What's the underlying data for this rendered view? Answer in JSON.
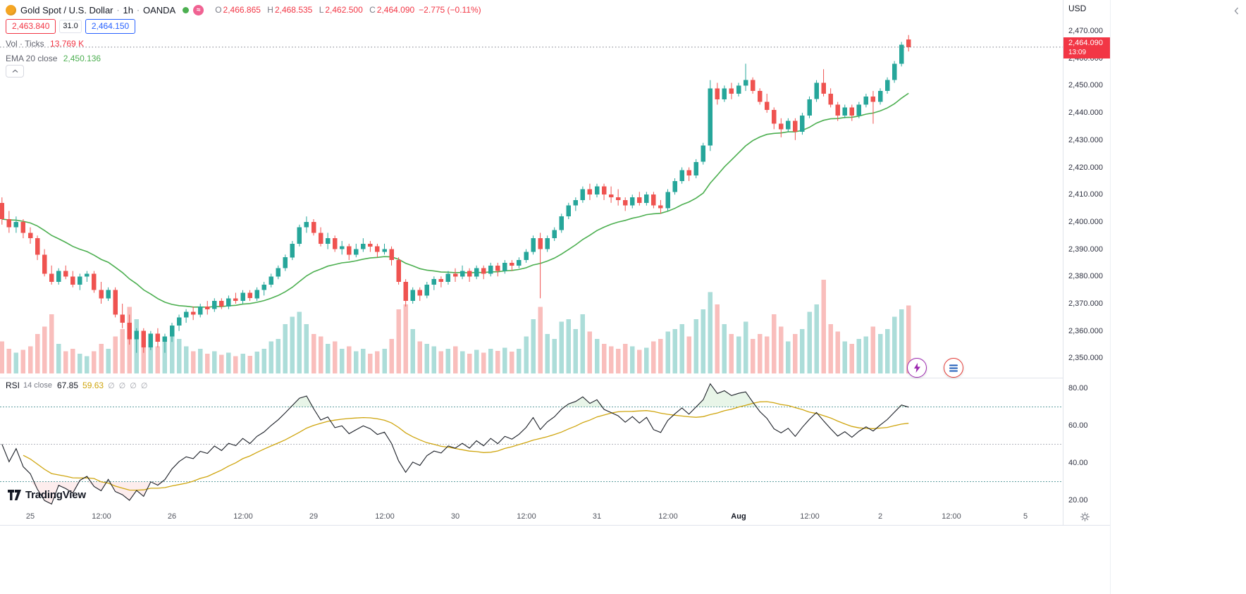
{
  "header": {
    "symbol_title": "Gold Spot / U.S. Dollar",
    "separator": "·",
    "interval": "1h",
    "exchange": "OANDA",
    "delayed_icon": "≈",
    "ohlc": {
      "o_label": "O",
      "o": "2,466.865",
      "h_label": "H",
      "h": "2,468.535",
      "l_label": "L",
      "l": "2,462.500",
      "c_label": "C",
      "c": "2,464.090",
      "change": "−2.775 (−0.11%)"
    },
    "bid": "2,463.840",
    "spread": "31.0",
    "ask": "2,464.150",
    "volume_label": "Vol · Ticks",
    "volume_value": "13.769 K",
    "ema_label": "EMA 20 close",
    "ema_value": "2,450.136"
  },
  "rsi_legend": {
    "title": "RSI",
    "params": "14 close",
    "value": "67.85",
    "ma_value": "59.63",
    "empty_plots": [
      "∅",
      "∅",
      "∅",
      "∅"
    ]
  },
  "price_axis": {
    "currency": "USD",
    "last_price": "2,464.090",
    "countdown": "13:09",
    "labels": [
      {
        "text": "2,470.000",
        "price": 2470
      },
      {
        "text": "2,460.000",
        "price": 2460
      },
      {
        "text": "2,450.000",
        "price": 2450
      },
      {
        "text": "2,440.000",
        "price": 2440
      },
      {
        "text": "2,430.000",
        "price": 2430
      },
      {
        "text": "2,420.000",
        "price": 2420
      },
      {
        "text": "2,410.000",
        "price": 2410
      },
      {
        "text": "2,400.000",
        "price": 2400
      },
      {
        "text": "2,390.000",
        "price": 2390
      },
      {
        "text": "2,380.000",
        "price": 2380
      },
      {
        "text": "2,370.000",
        "price": 2370
      },
      {
        "text": "2,360.000",
        "price": 2360
      },
      {
        "text": "2,350.000",
        "price": 2350
      }
    ]
  },
  "rsi_axis_labels": [
    {
      "text": "80.00",
      "value": 80
    },
    {
      "text": "60.00",
      "value": 60
    },
    {
      "text": "40.00",
      "value": 40
    },
    {
      "text": "20.00",
      "value": 20
    }
  ],
  "time_axis": [
    {
      "label": "25",
      "idx": 4,
      "bold": false
    },
    {
      "label": "12:00",
      "idx": 14,
      "bold": false
    },
    {
      "label": "26",
      "idx": 24,
      "bold": false
    },
    {
      "label": "12:00",
      "idx": 34,
      "bold": false
    },
    {
      "label": "29",
      "idx": 44,
      "bold": false
    },
    {
      "label": "12:00",
      "idx": 54,
      "bold": false
    },
    {
      "label": "30",
      "idx": 64,
      "bold": false
    },
    {
      "label": "12:00",
      "idx": 74,
      "bold": false
    },
    {
      "label": "31",
      "idx": 84,
      "bold": false
    },
    {
      "label": "12:00",
      "idx": 94,
      "bold": false
    },
    {
      "label": "Aug",
      "idx": 104,
      "bold": true
    },
    {
      "label": "12:00",
      "idx": 114,
      "bold": false
    },
    {
      "label": "2",
      "idx": 124,
      "bold": false
    },
    {
      "label": "12:00",
      "idx": 134,
      "bold": false
    },
    {
      "label": "5",
      "idx": 144.5,
      "bold": false
    }
  ],
  "watermark": "TradingView",
  "colors": {
    "up": "#26a69a",
    "down": "#ef5350",
    "vol_up": "rgba(38,166,154,0.38)",
    "vol_down": "rgba(239,83,80,0.38)",
    "ema": "#4caf50",
    "price_line": "#787b86",
    "rsi_line": "#1b1f27",
    "rsi_ma": "#cfa50e",
    "rsi_band": "#5f9ea0",
    "rsi_mid": "#b2b5be",
    "rsi_fill_high": "rgba(76,175,80,0.13)",
    "rsi_fill_low": "rgba(239,83,80,0.10)",
    "badge_bg": "#f23645",
    "bid": "#f23645",
    "ask": "#2962ff",
    "axis_border": "#e0e3eb",
    "status_green": "#4caf50",
    "delayed_pink": "#f06292",
    "logo_gold": "#f5a623"
  },
  "chart_data": {
    "type": "candlestick",
    "title": "Gold Spot / U.S. Dollar, 1h, OANDA",
    "ohlcv_format": [
      "open",
      "high",
      "low",
      "close",
      "volume_K"
    ],
    "visible_price_range": [
      2343,
      2481
    ],
    "indicators": {
      "ema_period": 20,
      "rsi_period": 14,
      "rsi_ma_period": 14,
      "rsi_bands": [
        70,
        50,
        30
      ]
    },
    "volume_unit": "K",
    "candles": [
      [
        2407,
        2409,
        2399,
        2401,
        6.5
      ],
      [
        2401,
        2404,
        2396,
        2398,
        5
      ],
      [
        2398,
        2402,
        2396,
        2400,
        4.2
      ],
      [
        2400,
        2401,
        2394,
        2396,
        4.8
      ],
      [
        2396,
        2398,
        2392,
        2394,
        5.5
      ],
      [
        2394,
        2395,
        2386,
        2388,
        8
      ],
      [
        2388,
        2390,
        2380,
        2381,
        9.5
      ],
      [
        2381,
        2384,
        2377,
        2378,
        12
      ],
      [
        2378,
        2383,
        2377,
        2382,
        6
      ],
      [
        2382,
        2384,
        2379,
        2380,
        4.5
      ],
      [
        2380,
        2382,
        2376,
        2377,
        5
      ],
      [
        2377,
        2381,
        2375,
        2380,
        4
      ],
      [
        2380,
        2382,
        2378,
        2381,
        3.5
      ],
      [
        2381,
        2382,
        2374,
        2375,
        4.5
      ],
      [
        2375,
        2378,
        2370,
        2372,
        6
      ],
      [
        2372,
        2376,
        2371,
        2375,
        5
      ],
      [
        2375,
        2376,
        2365,
        2366,
        7.5
      ],
      [
        2366,
        2370,
        2361,
        2363,
        9
      ],
      [
        2363,
        2366,
        2355,
        2357,
        13.5
      ],
      [
        2357,
        2361,
        2352,
        2360,
        11
      ],
      [
        2360,
        2361,
        2352,
        2354,
        8.5
      ],
      [
        2354,
        2360,
        2353,
        2359,
        6
      ],
      [
        2359,
        2361,
        2354,
        2356,
        5.5
      ],
      [
        2356,
        2359,
        2352,
        2358,
        7
      ],
      [
        2358,
        2363,
        2356,
        2362,
        9
      ],
      [
        2362,
        2366,
        2360,
        2365,
        7
      ],
      [
        2365,
        2368,
        2363,
        2367,
        5.5
      ],
      [
        2367,
        2369,
        2364,
        2366,
        4.5
      ],
      [
        2366,
        2370,
        2365,
        2369,
        5
      ],
      [
        2369,
        2371,
        2366,
        2368,
        4
      ],
      [
        2368,
        2372,
        2367,
        2371,
        4.5
      ],
      [
        2371,
        2372,
        2368,
        2369,
        3.8
      ],
      [
        2369,
        2373,
        2368,
        2372,
        4.2
      ],
      [
        2372,
        2374,
        2370,
        2371,
        3.5
      ],
      [
        2371,
        2375,
        2370,
        2374,
        4
      ],
      [
        2374,
        2375,
        2371,
        2372,
        3.6
      ],
      [
        2372,
        2376,
        2371,
        2375,
        4.4
      ],
      [
        2375,
        2378,
        2373,
        2377,
        5
      ],
      [
        2377,
        2381,
        2376,
        2380,
        6.5
      ],
      [
        2380,
        2384,
        2379,
        2383,
        7
      ],
      [
        2383,
        2388,
        2382,
        2387,
        10
      ],
      [
        2387,
        2393,
        2386,
        2392,
        11.5
      ],
      [
        2392,
        2399,
        2391,
        2398,
        12.5
      ],
      [
        2398,
        2402,
        2396,
        2400,
        10
      ],
      [
        2400,
        2401,
        2395,
        2396,
        8
      ],
      [
        2396,
        2398,
        2391,
        2392,
        7.5
      ],
      [
        2392,
        2396,
        2390,
        2394,
        6
      ],
      [
        2394,
        2395,
        2389,
        2390,
        6.5
      ],
      [
        2390,
        2393,
        2388,
        2391,
        5
      ],
      [
        2391,
        2392,
        2386,
        2388,
        5.5
      ],
      [
        2388,
        2392,
        2387,
        2390,
        4.5
      ],
      [
        2390,
        2394,
        2389,
        2392,
        5
      ],
      [
        2392,
        2393,
        2389,
        2391,
        4
      ],
      [
        2391,
        2392,
        2387,
        2389,
        4.5
      ],
      [
        2389,
        2392,
        2388,
        2390,
        5
      ],
      [
        2390,
        2391,
        2384,
        2386,
        7
      ],
      [
        2386,
        2387,
        2377,
        2378,
        13
      ],
      [
        2378,
        2379,
        2369,
        2371,
        14
      ],
      [
        2371,
        2376,
        2370,
        2375,
        9
      ],
      [
        2375,
        2376,
        2371,
        2373,
        6.5
      ],
      [
        2373,
        2378,
        2372,
        2377,
        6
      ],
      [
        2377,
        2380,
        2375,
        2379,
        5.5
      ],
      [
        2379,
        2380,
        2376,
        2378,
        4.5
      ],
      [
        2378,
        2382,
        2377,
        2381,
        5
      ],
      [
        2381,
        2383,
        2378,
        2380,
        5.5
      ],
      [
        2380,
        2384,
        2379,
        2382,
        4.5
      ],
      [
        2382,
        2383,
        2378,
        2380,
        4
      ],
      [
        2380,
        2384,
        2379,
        2383,
        4.8
      ],
      [
        2383,
        2384,
        2379,
        2381,
        4.2
      ],
      [
        2381,
        2385,
        2380,
        2384,
        5
      ],
      [
        2384,
        2385,
        2380,
        2382,
        4.6
      ],
      [
        2382,
        2386,
        2381,
        2385,
        5.2
      ],
      [
        2385,
        2386,
        2382,
        2384,
        4.4
      ],
      [
        2384,
        2387,
        2383,
        2386,
        5
      ],
      [
        2386,
        2390,
        2385,
        2389,
        7.5
      ],
      [
        2389,
        2395,
        2388,
        2394,
        11
      ],
      [
        2394,
        2396,
        2372,
        2390,
        13.5
      ],
      [
        2390,
        2395,
        2389,
        2394,
        8
      ],
      [
        2394,
        2398,
        2393,
        2397,
        7
      ],
      [
        2397,
        2403,
        2396,
        2402,
        10.5
      ],
      [
        2402,
        2407,
        2401,
        2406,
        11
      ],
      [
        2406,
        2409,
        2404,
        2408,
        9
      ],
      [
        2408,
        2413,
        2407,
        2412,
        12
      ],
      [
        2412,
        2414,
        2408,
        2410,
        8.5
      ],
      [
        2410,
        2414,
        2409,
        2413,
        7
      ],
      [
        2413,
        2414,
        2408,
        2410,
        6
      ],
      [
        2410,
        2413,
        2407,
        2409,
        5.5
      ],
      [
        2409,
        2412,
        2406,
        2408,
        5
      ],
      [
        2408,
        2409,
        2404,
        2406,
        6
      ],
      [
        2406,
        2410,
        2405,
        2409,
        5.5
      ],
      [
        2409,
        2411,
        2406,
        2407,
        4.8
      ],
      [
        2407,
        2411,
        2406,
        2410,
        5.2
      ],
      [
        2410,
        2411,
        2405,
        2406,
        6.5
      ],
      [
        2406,
        2408,
        2403,
        2405,
        7
      ],
      [
        2405,
        2412,
        2404,
        2411,
        8.5
      ],
      [
        2411,
        2416,
        2410,
        2415,
        9
      ],
      [
        2415,
        2420,
        2414,
        2419,
        10
      ],
      [
        2419,
        2420,
        2415,
        2417,
        7.5
      ],
      [
        2417,
        2423,
        2416,
        2422,
        11
      ],
      [
        2422,
        2429,
        2421,
        2428,
        13
      ],
      [
        2428,
        2452,
        2426,
        2449,
        16.5
      ],
      [
        2449,
        2451,
        2443,
        2445,
        14
      ],
      [
        2445,
        2450,
        2444,
        2449,
        10
      ],
      [
        2449,
        2451,
        2445,
        2447,
        8
      ],
      [
        2447,
        2451,
        2446,
        2450,
        7.5
      ],
      [
        2450,
        2458,
        2448,
        2452,
        10.5
      ],
      [
        2452,
        2453,
        2447,
        2448,
        7
      ],
      [
        2448,
        2449,
        2443,
        2444,
        8
      ],
      [
        2444,
        2447,
        2440,
        2441,
        7.5
      ],
      [
        2441,
        2442,
        2434,
        2436,
        12
      ],
      [
        2436,
        2438,
        2431,
        2434,
        9.5
      ],
      [
        2434,
        2438,
        2433,
        2437,
        6.5
      ],
      [
        2437,
        2438,
        2430,
        2433,
        8
      ],
      [
        2433,
        2440,
        2432,
        2439,
        9
      ],
      [
        2439,
        2446,
        2438,
        2445,
        12.5
      ],
      [
        2445,
        2452,
        2444,
        2451,
        14
      ],
      [
        2451,
        2456,
        2446,
        2447,
        19
      ],
      [
        2447,
        2449,
        2442,
        2443,
        10
      ],
      [
        2443,
        2444,
        2437,
        2439,
        8.5
      ],
      [
        2439,
        2443,
        2438,
        2442,
        6.5
      ],
      [
        2442,
        2443,
        2437,
        2439,
        6
      ],
      [
        2439,
        2444,
        2438,
        2443,
        7
      ],
      [
        2443,
        2447,
        2442,
        2446,
        7.5
      ],
      [
        2446,
        2448,
        2436,
        2444,
        9.5
      ],
      [
        2444,
        2449,
        2443,
        2448,
        8
      ],
      [
        2448,
        2453,
        2447,
        2452,
        9
      ],
      [
        2452,
        2459,
        2451,
        2458,
        11.5
      ],
      [
        2458,
        2466,
        2457,
        2465,
        13
      ],
      [
        2466.865,
        2468.535,
        2462.5,
        2464.09,
        13.769
      ]
    ]
  }
}
